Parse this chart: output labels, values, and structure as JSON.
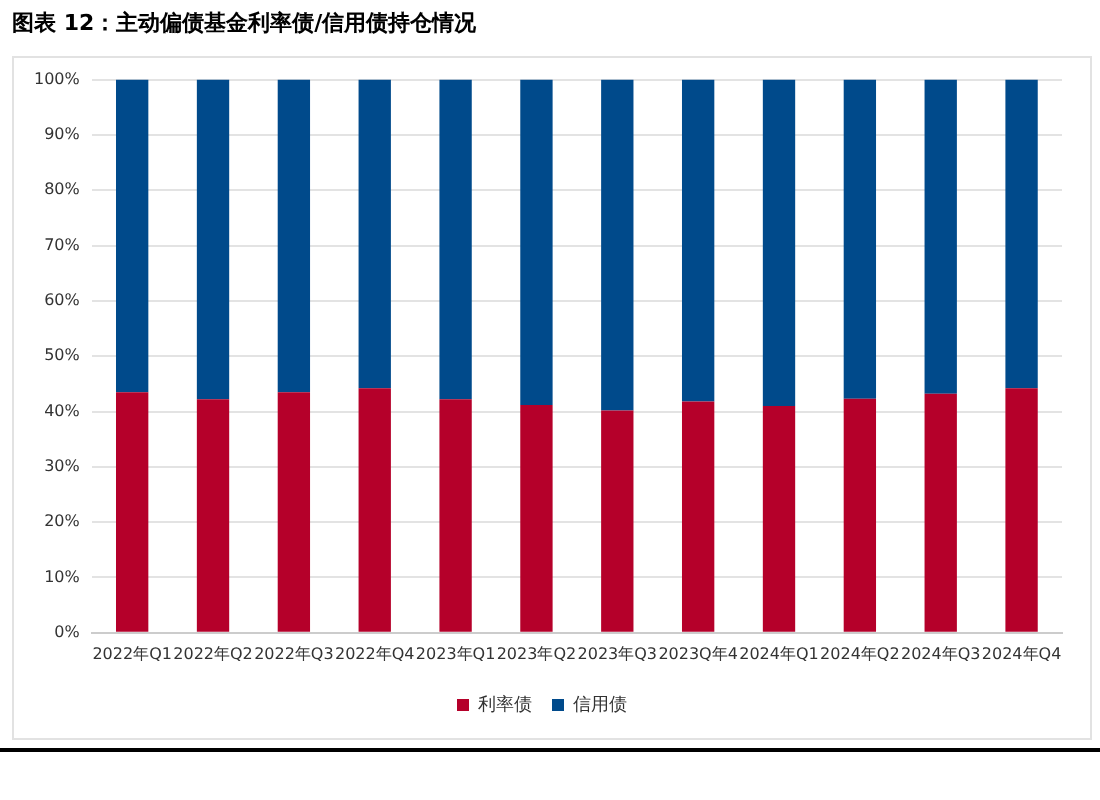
{
  "chart_data": {
    "type": "bar",
    "title": "图表 12：主动偏债基金利率债/信用债持仓情况",
    "categories": [
      "2022年Q1",
      "2022年Q2",
      "2022年Q3",
      "2022年Q4",
      "2023年Q1",
      "2023年Q2",
      "2023年Q3",
      "2023Q年4",
      "2024年Q1",
      "2024年Q2",
      "2024年Q3",
      "2024年Q4"
    ],
    "series": [
      {
        "name": "利率债",
        "color": "#b5002a",
        "values": [
          43.5,
          42.2,
          43.5,
          44.2,
          42.2,
          41.2,
          40.2,
          41.8,
          41.0,
          42.3,
          43.2,
          44.2
        ]
      },
      {
        "name": "信用债",
        "color": "#004a8b",
        "values": [
          56.5,
          57.8,
          56.5,
          55.8,
          57.8,
          58.8,
          59.8,
          58.2,
          59.0,
          57.7,
          56.8,
          55.8
        ]
      }
    ],
    "stacked": true,
    "ylim": [
      0,
      100
    ],
    "yticks": [
      {
        "value": 0,
        "label": "0%"
      },
      {
        "value": 10,
        "label": "10%"
      },
      {
        "value": 20,
        "label": "20%"
      },
      {
        "value": 30,
        "label": "30%"
      },
      {
        "value": 40,
        "label": "40%"
      },
      {
        "value": 50,
        "label": "50%"
      },
      {
        "value": 60,
        "label": "60%"
      },
      {
        "value": 70,
        "label": "70%"
      },
      {
        "value": 80,
        "label": "80%"
      },
      {
        "value": 90,
        "label": "90%"
      },
      {
        "value": 100,
        "label": "100%"
      }
    ],
    "grid": "y",
    "legend": "bottom"
  }
}
